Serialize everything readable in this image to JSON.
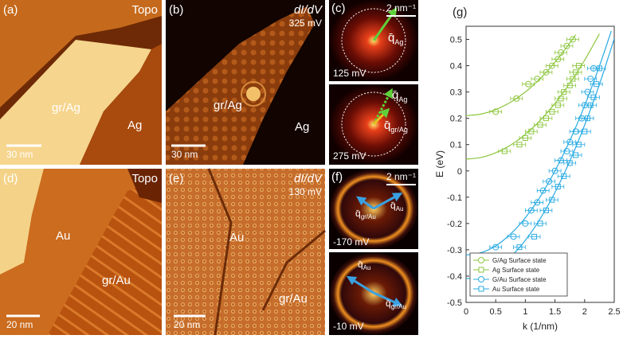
{
  "panels": [
    {
      "label": "(a)",
      "title": "Topo",
      "regions": [
        "gr/Ag",
        "Ag"
      ],
      "scale_bar": "30 nm"
    },
    {
      "label": "(b)",
      "title": "dI/dV",
      "bias": "325 mV",
      "regions": [
        "gr/Ag",
        "Ag"
      ],
      "scale_bar": "30 nm"
    },
    {
      "label": "(c)",
      "scale_bar": "2 nm⁻¹",
      "insets": [
        {
          "vectors": [
            {
              "symbol": "q̄",
              "sub": "Ag"
            }
          ],
          "bias": "125 mV"
        },
        {
          "vectors": [
            {
              "symbol": "q̄",
              "sub": "Ag"
            },
            {
              "symbol": "q̄",
              "sub": "gr/Ag"
            }
          ],
          "bias": "275 mV"
        }
      ]
    },
    {
      "label": "(d)",
      "title": "Topo",
      "regions": [
        "Au",
        "gr/Au"
      ],
      "scale_bar": "20 nm"
    },
    {
      "label": "(e)",
      "title": "dI/dV",
      "bias": "130 mV",
      "regions": [
        "Au",
        "gr/Au"
      ],
      "scale_bar": "20 nm"
    },
    {
      "label": "(f)",
      "scale_bar": "2 nm⁻¹",
      "insets": [
        {
          "vectors": [
            {
              "symbol": "q̄",
              "sub": "Au"
            },
            {
              "symbol": "q̄",
              "sub": "gr/Au"
            }
          ],
          "bias": "-170 mV"
        },
        {
          "vectors": [
            {
              "symbol": "q̄",
              "sub": "Au"
            },
            {
              "symbol": "q̄",
              "sub": "gr/Au"
            }
          ],
          "bias": "-10 mV"
        }
      ]
    }
  ],
  "chart_data": {
    "type": "scatter",
    "label": "(g)",
    "x_label": "k (1/nm)",
    "y_label": "E (eV)",
    "xlim": [
      0,
      2.5
    ],
    "ylim": [
      -0.5,
      0.55
    ],
    "xticks": [
      0,
      0.5,
      1,
      1.5,
      2,
      2.5
    ],
    "yticks": [
      -0.5,
      -0.4,
      -0.3,
      -0.2,
      -0.1,
      0,
      0.1,
      0.2,
      0.3,
      0.4,
      0.5
    ],
    "legend": "lower left",
    "series": [
      {
        "name": "G/Ag Surface state",
        "color": "#8dc63f",
        "marker": "circle",
        "xerr": 0.1,
        "x": [
          0.5,
          0.85,
          1.05,
          1.2,
          1.35,
          1.45,
          1.55,
          1.6,
          1.7,
          1.8
        ],
        "values": [
          0.225,
          0.275,
          0.33,
          0.35,
          0.375,
          0.4,
          0.425,
          0.45,
          0.475,
          0.5
        ]
      },
      {
        "name": "Ag Surface state",
        "color": "#8dc63f",
        "marker": "square",
        "xerr": 0.1,
        "x": [
          0.65,
          0.9,
          1.0,
          1.1,
          1.25,
          1.35,
          1.45,
          1.55,
          1.6,
          1.65,
          1.75,
          1.8,
          1.85,
          1.9
        ],
        "values": [
          0.075,
          0.1,
          0.125,
          0.15,
          0.175,
          0.2,
          0.225,
          0.25,
          0.275,
          0.3,
          0.325,
          0.35,
          0.375,
          0.4
        ]
      },
      {
        "name": "G/Au Surface state",
        "color": "#29abe2",
        "marker": "circle",
        "xerr": 0.1,
        "x": [
          0.5,
          0.8,
          1.0,
          1.1,
          1.2,
          1.3,
          1.4,
          1.5,
          1.6,
          1.7,
          1.75,
          1.85,
          1.95,
          2.0,
          2.05,
          2.1,
          2.15
        ],
        "values": [
          -0.29,
          -0.25,
          -0.2,
          -0.15,
          -0.12,
          -0.075,
          -0.04,
          0,
          0.04,
          0.075,
          0.11,
          0.15,
          0.2,
          0.25,
          0.3,
          0.35,
          0.39
        ]
      },
      {
        "name": "Au Surface state",
        "color": "#29abe2",
        "marker": "square",
        "xerr": 0.1,
        "x": [
          0.9,
          1.15,
          1.25,
          1.35,
          1.45,
          1.55,
          1.65,
          1.75,
          1.85,
          1.9,
          2.0,
          2.05,
          2.1,
          2.15,
          2.2,
          2.25
        ],
        "values": [
          -0.29,
          -0.25,
          -0.2,
          -0.15,
          -0.11,
          -0.06,
          -0.02,
          0.03,
          0.06,
          0.1,
          0.15,
          0.2,
          0.25,
          0.28,
          0.33,
          0.39
        ]
      }
    ],
    "curves": [
      {
        "color": "#8dc63f",
        "x": [
          0,
          0.25,
          0.5,
          0.75,
          1,
          1.25,
          1.5,
          1.75,
          1.85
        ],
        "values": [
          0.21,
          0.216,
          0.233,
          0.261,
          0.3,
          0.351,
          0.413,
          0.486,
          0.518
        ]
      },
      {
        "color": "#8dc63f",
        "x": [
          0,
          0.25,
          0.5,
          0.75,
          1,
          1.25,
          1.5,
          1.75,
          2,
          2.25
        ],
        "values": [
          0.045,
          0.051,
          0.069,
          0.098,
          0.139,
          0.192,
          0.257,
          0.333,
          0.421,
          0.521
        ]
      },
      {
        "color": "#29abe2",
        "x": [
          0,
          0.25,
          0.5,
          0.75,
          1,
          1.25,
          1.5,
          1.75,
          2,
          2.25,
          2.45
        ],
        "values": [
          -0.32,
          -0.311,
          -0.285,
          -0.24,
          -0.178,
          -0.098,
          0,
          0.115,
          0.248,
          0.399,
          0.532
        ]
      },
      {
        "color": "#29abe2",
        "x": [
          0,
          0.25,
          0.5,
          0.75,
          1,
          1.25,
          1.5,
          1.75,
          2,
          2.25,
          2.5
        ],
        "values": [
          -0.41,
          -0.401,
          -0.374,
          -0.328,
          -0.264,
          -0.182,
          -0.082,
          0.037,
          0.174,
          0.329,
          0.503
        ]
      }
    ]
  }
}
